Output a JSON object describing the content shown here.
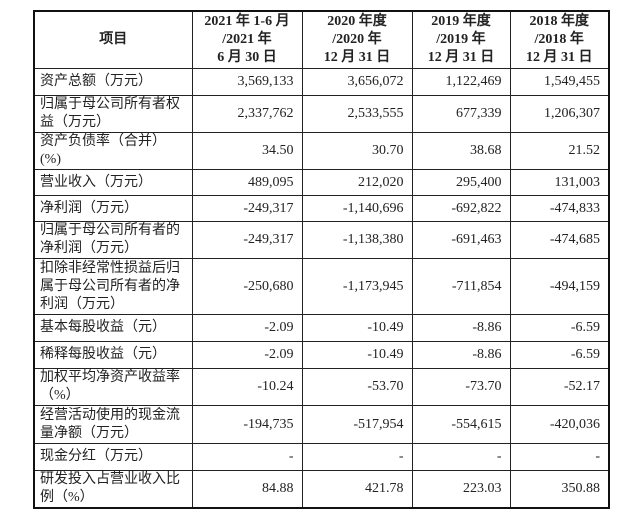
{
  "table": {
    "headers": [
      [
        "项目"
      ],
      [
        "2021 年 1-6 月",
        "/2021 年",
        "6 月 30 日"
      ],
      [
        "2020 年度",
        "/2020 年",
        "12 月 31 日"
      ],
      [
        "2019 年度",
        "/2019 年",
        "12 月 31 日"
      ],
      [
        "2018 年度",
        "/2018 年",
        "12 月 31 日"
      ]
    ],
    "rows": [
      {
        "label": "资产总额（万元）",
        "values": [
          "3,569,133",
          "3,656,072",
          "1,122,469",
          "1,549,455"
        ]
      },
      {
        "label": "归属于母公司所有者权益（万元）",
        "values": [
          "2,337,762",
          "2,533,555",
          "677,339",
          "1,206,307"
        ]
      },
      {
        "label": "资产负债率（合并）(%)",
        "values": [
          "34.50",
          "30.70",
          "38.68",
          "21.52"
        ]
      },
      {
        "label": "营业收入（万元）",
        "values": [
          "489,095",
          "212,020",
          "295,400",
          "131,003"
        ]
      },
      {
        "label": "净利润（万元）",
        "values": [
          "-249,317",
          "-1,140,696",
          "-692,822",
          "-474,833"
        ]
      },
      {
        "label": "归属于母公司所有者的净利润（万元）",
        "values": [
          "-249,317",
          "-1,138,380",
          "-691,463",
          "-474,685"
        ]
      },
      {
        "label": "扣除非经常性损益后归属于母公司所有者的净利润（万元）",
        "values": [
          "-250,680",
          "-1,173,945",
          "-711,854",
          "-494,159"
        ]
      },
      {
        "label": "基本每股收益（元）",
        "values": [
          "-2.09",
          "-10.49",
          "-8.86",
          "-6.59"
        ]
      },
      {
        "label": "稀释每股收益（元）",
        "values": [
          "-2.09",
          "-10.49",
          "-8.86",
          "-6.59"
        ]
      },
      {
        "label": "加权平均净资产收益率（%）",
        "values": [
          "-10.24",
          "-53.70",
          "-73.70",
          "-52.17"
        ]
      },
      {
        "label": "经营活动使用的现金流量净额（万元）",
        "values": [
          "-194,735",
          "-517,954",
          "-554,615",
          "-420,036"
        ]
      },
      {
        "label": "现金分红（万元）",
        "values": [
          "-",
          "-",
          "-",
          "-"
        ]
      },
      {
        "label": "研发投入占营业收入比例（%）",
        "values": [
          "84.88",
          "421.78",
          "223.03",
          "350.88"
        ]
      }
    ]
  }
}
